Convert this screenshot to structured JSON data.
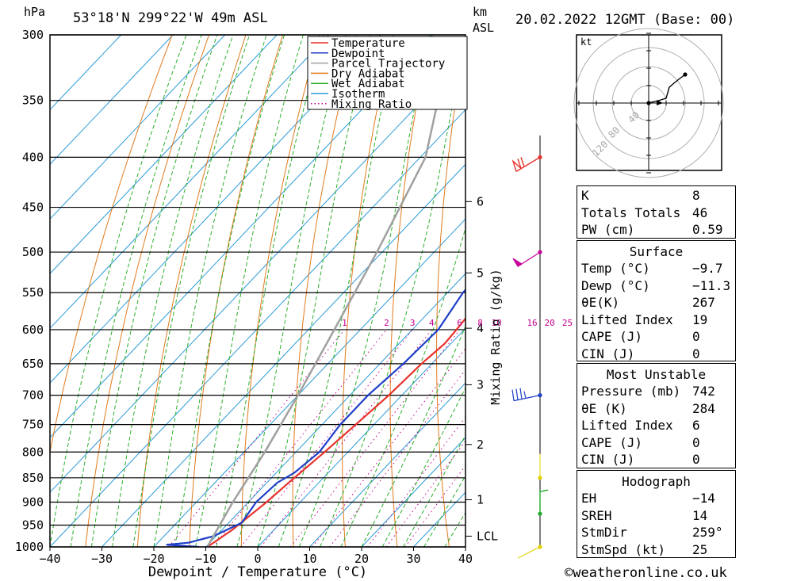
{
  "header": {
    "left_unit": "hPa",
    "location": "53°18'N  299°22'W  49m  ASL",
    "right_unit_top": "km",
    "right_unit_bottom": "ASL",
    "datetime": "20.02.2022  12GMT  (Base: 00)"
  },
  "chart_data": {
    "type": "line",
    "title": "",
    "xlabel": "Dewpoint / Temperature (°C)",
    "ylabel": "hPa",
    "secondary_ylabel": "Mixing Ratio (g/kg)",
    "xlim": [
      -40,
      40
    ],
    "ylim": [
      1000,
      300
    ],
    "x_ticks": [
      -40,
      -30,
      -20,
      -10,
      0,
      10,
      20,
      30,
      40
    ],
    "pressure_levels": [
      300,
      350,
      400,
      450,
      500,
      550,
      600,
      650,
      700,
      750,
      800,
      850,
      900,
      950,
      1000
    ],
    "km_ticks": [
      {
        "label": "6",
        "p": 444
      },
      {
        "label": "5",
        "p": 525
      },
      {
        "label": "4",
        "p": 598
      },
      {
        "label": "3",
        "p": 683
      },
      {
        "label": "2",
        "p": 786
      },
      {
        "label": "1",
        "p": 895
      },
      {
        "label": "LCL",
        "p": 975
      }
    ],
    "mixing_ratio_labels": [
      "1",
      "2",
      "3",
      "4",
      "6",
      "8",
      "10",
      "16",
      "20",
      "25"
    ],
    "legend": [
      "Temperature",
      "Dewpoint",
      "Parcel Trajectory",
      "Dry Adiabat",
      "Wet Adiabat",
      "Isotherm",
      "Mixing Ratio"
    ],
    "series": [
      {
        "name": "Temperature",
        "color": "#e8322c",
        "points": [
          [
            -9.7,
            1000
          ],
          [
            -8,
            960
          ],
          [
            -6.5,
            900
          ],
          [
            -5.8,
            860
          ],
          [
            -4.5,
            800
          ],
          [
            -3.5,
            750
          ],
          [
            -2.5,
            700
          ],
          [
            -2,
            650
          ],
          [
            -1.2,
            620
          ],
          [
            -1.5,
            600
          ],
          [
            -2.5,
            550
          ],
          [
            -4.5,
            500
          ],
          [
            -3.5,
            490
          ],
          [
            -4.5,
            450
          ],
          [
            -5.5,
            400
          ]
        ]
      },
      {
        "name": "Dewpoint",
        "color": "#1f3fc8",
        "points": [
          [
            -11.3,
            1000
          ],
          [
            -18,
            995
          ],
          [
            -14,
            990
          ],
          [
            -10.5,
            975
          ],
          [
            -8.5,
            955
          ],
          [
            -7.5,
            945
          ],
          [
            -8.5,
            900
          ],
          [
            -8,
            860
          ],
          [
            -6.5,
            840
          ],
          [
            -5.5,
            800
          ],
          [
            -6.5,
            750
          ],
          [
            -6.5,
            700
          ],
          [
            -5.5,
            650
          ],
          [
            -5,
            600
          ],
          [
            -7,
            550
          ],
          [
            -7.5,
            515
          ],
          [
            -6,
            500
          ],
          [
            -6,
            470
          ],
          [
            -7.5,
            450
          ],
          [
            -8.5,
            400
          ]
        ]
      },
      {
        "name": "Parcel Trajectory",
        "color": "#a0a0a0",
        "points": [
          [
            -9.7,
            1000
          ],
          [
            -10.5,
            975
          ],
          [
            -13,
            900
          ],
          [
            -16,
            800
          ],
          [
            -20,
            700
          ],
          [
            -25,
            600
          ],
          [
            -31,
            500
          ],
          [
            -39,
            400
          ],
          [
            -47,
            350
          ],
          [
            -55,
            305
          ]
        ]
      }
    ],
    "wind_barbs": [
      {
        "p": 400,
        "color": "#e8322c"
      },
      {
        "p": 500,
        "color": "#c8009a"
      },
      {
        "p": 700,
        "color": "#1f3fc8"
      },
      {
        "p": 850,
        "color": "#e0d000"
      },
      {
        "p": 925,
        "color": "#1ea82a"
      },
      {
        "p": 1000,
        "color": "#e0d000"
      }
    ]
  },
  "hodograph": {
    "unit": "kt",
    "ring_labels": [
      "40",
      "80",
      "120"
    ]
  },
  "indices": {
    "rows": [
      {
        "label": "K",
        "value": "8"
      },
      {
        "label": "Totals Totals",
        "value": "46"
      },
      {
        "label": "PW (cm)",
        "value": "0.59"
      }
    ]
  },
  "surface": {
    "title": "Surface",
    "rows": [
      {
        "label": "Temp (°C)",
        "value": "−9.7"
      },
      {
        "label": "Dewp (°C)",
        "value": "−11.3"
      },
      {
        "label": "θE(K)",
        "value": "267"
      },
      {
        "label": "Lifted Index",
        "value": "19"
      },
      {
        "label": "CAPE (J)",
        "value": "0"
      },
      {
        "label": "CIN (J)",
        "value": "0"
      }
    ]
  },
  "most_unstable": {
    "title": "Most Unstable",
    "rows": [
      {
        "label": "Pressure (mb)",
        "value": "742"
      },
      {
        "label": "θE (K)",
        "value": "284"
      },
      {
        "label": "Lifted Index",
        "value": "6"
      },
      {
        "label": "CAPE (J)",
        "value": "0"
      },
      {
        "label": "CIN (J)",
        "value": "0"
      }
    ]
  },
  "hodograph_table": {
    "title": "Hodograph",
    "rows": [
      {
        "label": "EH",
        "value": "−14"
      },
      {
        "label": "SREH",
        "value": "14"
      },
      {
        "label": "StmDir",
        "value": "259°"
      },
      {
        "label": "StmSpd (kt)",
        "value": "25"
      }
    ]
  },
  "footer": {
    "copyright": "©weatheronline.co.uk"
  }
}
